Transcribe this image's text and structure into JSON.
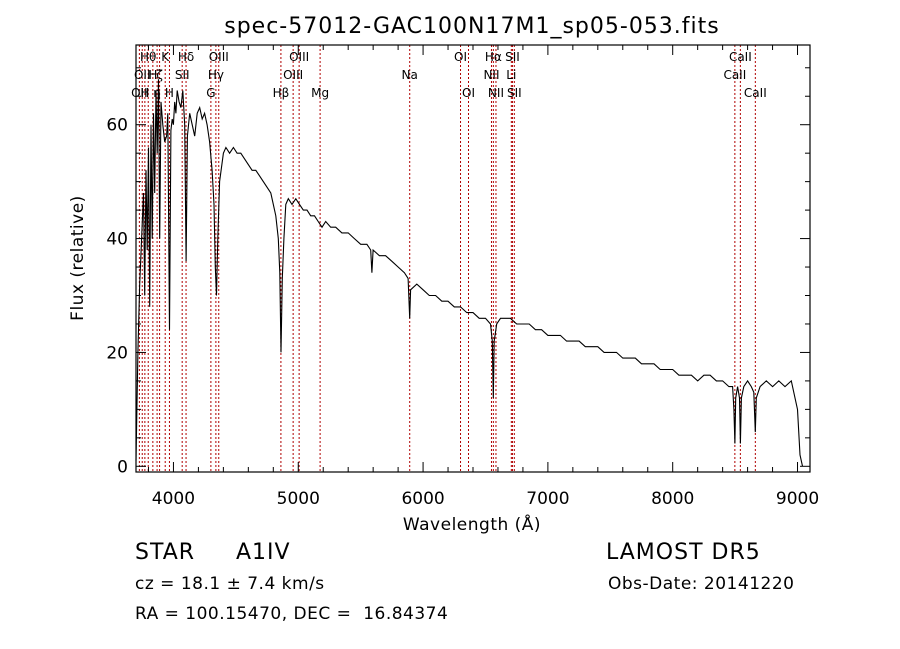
{
  "chart_data": {
    "type": "line",
    "title": "spec-57012-GAC100N17M1_sp05-053.fits",
    "xlabel": "Wavelength (Å)",
    "ylabel": "Flux (relative)",
    "xlim": [
      3700,
      9100
    ],
    "ylim": [
      -1,
      74
    ],
    "x_ticks": [
      4000,
      5000,
      6000,
      7000,
      8000,
      9000
    ],
    "y_ticks": [
      0,
      20,
      40,
      60
    ],
    "grid": false,
    "line_color": "#000000",
    "marker_color": "#b00000",
    "series": [
      {
        "points": [
          [
            3700,
            1
          ],
          [
            3715,
            20
          ],
          [
            3730,
            32
          ],
          [
            3745,
            40
          ],
          [
            3760,
            48
          ],
          [
            3770,
            30
          ],
          [
            3780,
            52
          ],
          [
            3790,
            38
          ],
          [
            3800,
            56
          ],
          [
            3810,
            28
          ],
          [
            3820,
            60
          ],
          [
            3830,
            40
          ],
          [
            3840,
            62
          ],
          [
            3850,
            48
          ],
          [
            3860,
            66
          ],
          [
            3870,
            55
          ],
          [
            3880,
            68
          ],
          [
            3890,
            40
          ],
          [
            3900,
            64
          ],
          [
            3915,
            60
          ],
          [
            3930,
            57
          ],
          [
            3945,
            58
          ],
          [
            3955,
            62
          ],
          [
            3968,
            24
          ],
          [
            3980,
            59
          ],
          [
            3990,
            61
          ],
          [
            4000,
            60
          ],
          [
            4010,
            64
          ],
          [
            4020,
            62
          ],
          [
            4030,
            66
          ],
          [
            4045,
            64
          ],
          [
            4060,
            63
          ],
          [
            4075,
            66
          ],
          [
            4090,
            60
          ],
          [
            4101,
            36
          ],
          [
            4112,
            58
          ],
          [
            4130,
            62
          ],
          [
            4150,
            60
          ],
          [
            4170,
            58
          ],
          [
            4190,
            62
          ],
          [
            4210,
            63
          ],
          [
            4230,
            61
          ],
          [
            4250,
            62
          ],
          [
            4270,
            60
          ],
          [
            4290,
            57
          ],
          [
            4310,
            52
          ],
          [
            4325,
            46
          ],
          [
            4335,
            35
          ],
          [
            4345,
            30
          ],
          [
            4355,
            40
          ],
          [
            4370,
            50
          ],
          [
            4400,
            55
          ],
          [
            4420,
            56
          ],
          [
            4450,
            55
          ],
          [
            4480,
            56
          ],
          [
            4510,
            55
          ],
          [
            4540,
            55
          ],
          [
            4570,
            54
          ],
          [
            4600,
            53
          ],
          [
            4630,
            52
          ],
          [
            4660,
            52
          ],
          [
            4690,
            51
          ],
          [
            4720,
            50
          ],
          [
            4750,
            49
          ],
          [
            4780,
            48
          ],
          [
            4800,
            46
          ],
          [
            4820,
            44
          ],
          [
            4840,
            40
          ],
          [
            4852,
            34
          ],
          [
            4862,
            20
          ],
          [
            4872,
            33
          ],
          [
            4885,
            40
          ],
          [
            4900,
            46
          ],
          [
            4920,
            47
          ],
          [
            4950,
            46
          ],
          [
            4980,
            47
          ],
          [
            5010,
            46
          ],
          [
            5040,
            45
          ],
          [
            5070,
            45
          ],
          [
            5100,
            44
          ],
          [
            5130,
            44
          ],
          [
            5160,
            43
          ],
          [
            5190,
            42
          ],
          [
            5220,
            43
          ],
          [
            5260,
            42
          ],
          [
            5300,
            42
          ],
          [
            5350,
            41
          ],
          [
            5400,
            41
          ],
          [
            5450,
            40
          ],
          [
            5500,
            39
          ],
          [
            5550,
            39
          ],
          [
            5580,
            38
          ],
          [
            5590,
            34
          ],
          [
            5600,
            38
          ],
          [
            5650,
            37
          ],
          [
            5700,
            37
          ],
          [
            5750,
            36
          ],
          [
            5800,
            35
          ],
          [
            5850,
            34
          ],
          [
            5880,
            33
          ],
          [
            5893,
            26
          ],
          [
            5900,
            31
          ],
          [
            5950,
            32
          ],
          [
            6000,
            31
          ],
          [
            6050,
            30
          ],
          [
            6100,
            30
          ],
          [
            6150,
            29
          ],
          [
            6200,
            29
          ],
          [
            6250,
            28
          ],
          [
            6300,
            28
          ],
          [
            6350,
            27
          ],
          [
            6400,
            27
          ],
          [
            6450,
            26
          ],
          [
            6500,
            26
          ],
          [
            6540,
            25
          ],
          [
            6555,
            22
          ],
          [
            6563,
            12
          ],
          [
            6570,
            22
          ],
          [
            6590,
            25
          ],
          [
            6620,
            26
          ],
          [
            6650,
            26
          ],
          [
            6700,
            26
          ],
          [
            6750,
            25
          ],
          [
            6800,
            25
          ],
          [
            6850,
            25
          ],
          [
            6900,
            24
          ],
          [
            6950,
            24
          ],
          [
            7000,
            23
          ],
          [
            7050,
            23
          ],
          [
            7100,
            23
          ],
          [
            7150,
            22
          ],
          [
            7200,
            22
          ],
          [
            7250,
            22
          ],
          [
            7300,
            21
          ],
          [
            7350,
            21
          ],
          [
            7400,
            21
          ],
          [
            7450,
            20
          ],
          [
            7500,
            20
          ],
          [
            7550,
            20
          ],
          [
            7600,
            19
          ],
          [
            7650,
            19
          ],
          [
            7700,
            19
          ],
          [
            7750,
            18
          ],
          [
            7800,
            18
          ],
          [
            7850,
            18
          ],
          [
            7900,
            17
          ],
          [
            7950,
            17
          ],
          [
            8000,
            17
          ],
          [
            8050,
            16
          ],
          [
            8100,
            16
          ],
          [
            8150,
            16
          ],
          [
            8200,
            15
          ],
          [
            8250,
            16
          ],
          [
            8300,
            16
          ],
          [
            8350,
            15
          ],
          [
            8400,
            15
          ],
          [
            8450,
            14
          ],
          [
            8480,
            14
          ],
          [
            8490,
            10
          ],
          [
            8498,
            4
          ],
          [
            8505,
            12
          ],
          [
            8520,
            14
          ],
          [
            8535,
            12
          ],
          [
            8542,
            4
          ],
          [
            8550,
            12
          ],
          [
            8570,
            14
          ],
          [
            8600,
            15
          ],
          [
            8630,
            14
          ],
          [
            8650,
            13
          ],
          [
            8662,
            6
          ],
          [
            8670,
            12
          ],
          [
            8700,
            14
          ],
          [
            8750,
            15
          ],
          [
            8800,
            14
          ],
          [
            8850,
            15
          ],
          [
            8900,
            14
          ],
          [
            8950,
            15
          ],
          [
            9000,
            10
          ],
          [
            9020,
            2
          ],
          [
            9040,
            0
          ]
        ]
      }
    ],
    "lines": [
      {
        "x": 3727,
        "label": "OII",
        "row": 2
      },
      {
        "x": 3750,
        "label": "OII",
        "row": 1
      },
      {
        "x": 3771,
        "label": "H",
        "row": 2
      },
      {
        "x": 3798,
        "label": "Hθ",
        "row": 0
      },
      {
        "x": 3835,
        "label": "H",
        "row": 1
      },
      {
        "x": 3869,
        "label": "η",
        "row": 2
      },
      {
        "x": 3889,
        "label": "ζ",
        "row": 1
      },
      {
        "x": 3934,
        "label": "K",
        "row": 0
      },
      {
        "x": 3968,
        "label": "H",
        "row": 2
      },
      {
        "x": 4070,
        "label": "SII",
        "row": 1
      },
      {
        "x": 4101,
        "label": "Hδ",
        "row": 0
      },
      {
        "x": 4300,
        "label": "G",
        "row": 2
      },
      {
        "x": 4340,
        "label": "Hγ",
        "row": 1
      },
      {
        "x": 4363,
        "label": "OIII",
        "row": 0
      },
      {
        "x": 4861,
        "label": "Hβ",
        "row": 2
      },
      {
        "x": 4959,
        "label": "OIII",
        "row": 1
      },
      {
        "x": 5007,
        "label": "OIII",
        "row": 0
      },
      {
        "x": 5175,
        "label": "Mg",
        "row": 2
      },
      {
        "x": 5893,
        "label": "Na",
        "row": 1
      },
      {
        "x": 6300,
        "label": "OI",
        "row": 0
      },
      {
        "x": 6364,
        "label": "OI",
        "row": 2
      },
      {
        "x": 6548,
        "label": "NII",
        "row": 1
      },
      {
        "x": 6563,
        "label": "Hα",
        "row": 0
      },
      {
        "x": 6584,
        "label": "NII",
        "row": 2
      },
      {
        "x": 6707,
        "label": "Li",
        "row": 1
      },
      {
        "x": 6716,
        "label": "SII",
        "row": 0
      },
      {
        "x": 6731,
        "label": "SII",
        "row": 2
      },
      {
        "x": 8498,
        "label": "CaII",
        "row": 1
      },
      {
        "x": 8542,
        "label": "CaII",
        "row": 0
      },
      {
        "x": 8662,
        "label": "CaII",
        "row": 2
      }
    ]
  },
  "info": {
    "class_label": "STAR",
    "subclass": "A1IV",
    "survey": "LAMOST DR5",
    "cz": "cz = 18.1 ± 7.4 km/s",
    "obs_date": "Obs-Date: 20141220",
    "coords": "RA = 100.15470, DEC =  16.84374"
  }
}
